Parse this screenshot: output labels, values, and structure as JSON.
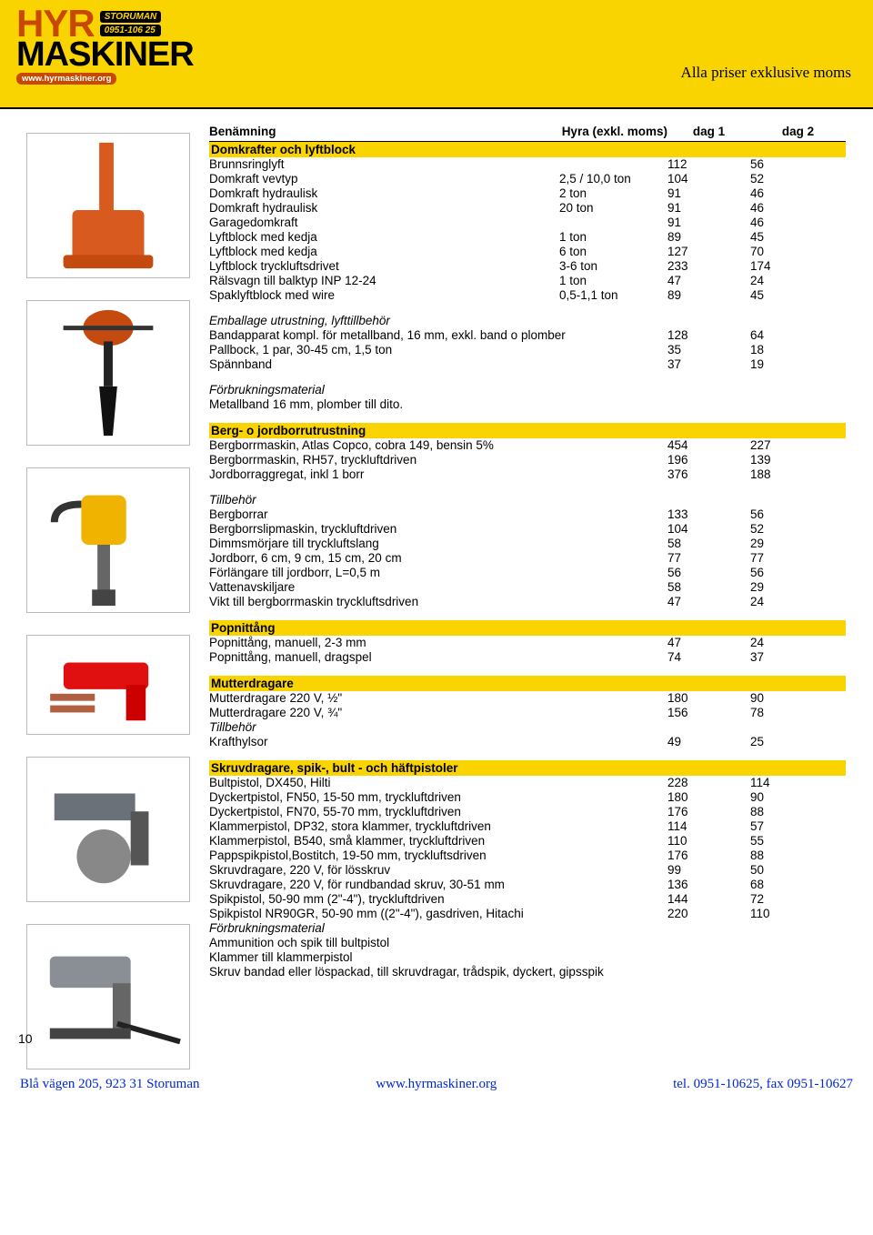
{
  "header": {
    "logo_hyr": "HYR",
    "logo_tag1": "STORUMAN",
    "logo_tag2": "0951-106 25",
    "logo_maskiner": "MASKINER",
    "logo_url": "www.hyrmaskiner.org",
    "right_text": "Alla priser exklusive moms",
    "colors": {
      "banner": "#fad400",
      "accent": "#c84800",
      "footer_text": "#0227d5"
    }
  },
  "page_number": "10",
  "footer": {
    "address": "Blå vägen 205,  923 31 Storuman",
    "url": "www.hyrmaskiner.org",
    "contact": "tel. 0951-10625, fax 0951-10627"
  },
  "table": {
    "headers": {
      "name": "Benämning",
      "spec": "Hyra (exkl. moms)",
      "d1": "dag 1",
      "d2": "dag 2"
    },
    "body": [
      {
        "t": "section",
        "name": "Domkrafter och lyftblock"
      },
      {
        "t": "row",
        "name": "Brunnsringlyft",
        "spec": "",
        "d1": "112",
        "d2": "56"
      },
      {
        "t": "row",
        "name": "Domkraft vevtyp",
        "spec": "2,5 / 10,0 ton",
        "d1": "104",
        "d2": "52"
      },
      {
        "t": "row",
        "name": "Domkraft hydraulisk",
        "spec": "2 ton",
        "d1": "91",
        "d2": "46"
      },
      {
        "t": "row",
        "name": "Domkraft hydraulisk",
        "spec": "20 ton",
        "d1": "91",
        "d2": "46"
      },
      {
        "t": "row",
        "name": "Garagedomkraft",
        "spec": "",
        "d1": "91",
        "d2": "46"
      },
      {
        "t": "row",
        "name": "Lyftblock med kedja",
        "spec": "1 ton",
        "d1": "89",
        "d2": "45"
      },
      {
        "t": "row",
        "name": "Lyftblock med kedja",
        "spec": "6 ton",
        "d1": "127",
        "d2": "70"
      },
      {
        "t": "row",
        "name": "Lyftblock tryckluftsdrivet",
        "spec": "3-6 ton",
        "d1": "233",
        "d2": "174"
      },
      {
        "t": "row",
        "name": "Rälsvagn till balktyp INP 12-24",
        "spec": "1 ton",
        "d1": "47",
        "d2": "24"
      },
      {
        "t": "row",
        "name": "Spaklyftblock med wire",
        "spec": "0,5-1,1 ton",
        "d1": "89",
        "d2": "45"
      },
      {
        "t": "spacer"
      },
      {
        "t": "ital",
        "name": "Emballage utrustning, lyfttillbehör"
      },
      {
        "t": "row",
        "name": "Bandapparat kompl. för metallband, 16 mm, exkl. band o plomber",
        "spec": "",
        "d1": "128",
        "d2": "64"
      },
      {
        "t": "row",
        "name": "Pallbock, 1 par, 30-45 cm, 1,5 ton",
        "spec": "",
        "d1": "35",
        "d2": "18"
      },
      {
        "t": "row",
        "name": "Spännband",
        "spec": "",
        "d1": "37",
        "d2": "19"
      },
      {
        "t": "spacer"
      },
      {
        "t": "ital",
        "name": "Förbrukningsmaterial"
      },
      {
        "t": "row",
        "name": "Metallband 16 mm, plomber till dito.",
        "spec": "",
        "d1": "",
        "d2": ""
      },
      {
        "t": "spacer"
      },
      {
        "t": "section",
        "name": "Berg- o jordborrutrustning"
      },
      {
        "t": "row",
        "name": "Bergborrmaskin, Atlas Copco, cobra 149, bensin 5%",
        "spec": "",
        "d1": "454",
        "d2": "227"
      },
      {
        "t": "row",
        "name": "Bergborrmaskin, RH57, tryckluftdriven",
        "spec": "",
        "d1": "196",
        "d2": "139"
      },
      {
        "t": "row",
        "name": "Jordborraggregat, inkl 1 borr",
        "spec": "",
        "d1": "376",
        "d2": "188"
      },
      {
        "t": "spacer"
      },
      {
        "t": "ital",
        "name": "Tillbehör"
      },
      {
        "t": "row",
        "name": "Bergborrar",
        "spec": "",
        "d1": "133",
        "d2": "56"
      },
      {
        "t": "row",
        "name": "Bergborrslipmaskin, tryckluftdriven",
        "spec": "",
        "d1": "104",
        "d2": "52"
      },
      {
        "t": "row",
        "name": "Dimmsmörjare till tryckluftslang",
        "spec": "",
        "d1": "58",
        "d2": "29"
      },
      {
        "t": "row",
        "name": "Jordborr, 6 cm, 9 cm, 15 cm, 20 cm",
        "spec": "",
        "d1": "77",
        "d2": "77"
      },
      {
        "t": "row",
        "name": "Förlängare till jordborr, L=0,5 m",
        "spec": "",
        "d1": "56",
        "d2": "56"
      },
      {
        "t": "row",
        "name": "Vattenavskiljare",
        "spec": "",
        "d1": "58",
        "d2": "29"
      },
      {
        "t": "row",
        "name": "Vikt till bergborrmaskin tryckluftsdriven",
        "spec": "",
        "d1": "47",
        "d2": "24"
      },
      {
        "t": "spacer"
      },
      {
        "t": "section",
        "name": "Popnittång"
      },
      {
        "t": "row",
        "name": "Popnittång, manuell, 2-3 mm",
        "spec": "",
        "d1": "47",
        "d2": "24"
      },
      {
        "t": "row",
        "name": "Popnittång, manuell, dragspel",
        "spec": "",
        "d1": "74",
        "d2": "37"
      },
      {
        "t": "spacer"
      },
      {
        "t": "section",
        "name": "Mutterdragare"
      },
      {
        "t": "row",
        "name": "Mutterdragare 220 V, ½\"",
        "spec": "",
        "d1": "180",
        "d2": "90"
      },
      {
        "t": "row",
        "name": "Mutterdragare 220 V, ¾\"",
        "spec": "",
        "d1": "156",
        "d2": "78"
      },
      {
        "t": "ital",
        "name": "Tillbehör"
      },
      {
        "t": "row",
        "name": "Krafthylsor",
        "spec": "",
        "d1": "49",
        "d2": "25"
      },
      {
        "t": "spacer"
      },
      {
        "t": "section",
        "name": "Skruvdragare, spik-, bult - och häftpistoler"
      },
      {
        "t": "row",
        "name": "Bultpistol, DX450, Hilti",
        "spec": "",
        "d1": "228",
        "d2": "114"
      },
      {
        "t": "row",
        "name": "Dyckertpistol, FN50, 15-50 mm, tryckluftdriven",
        "spec": "",
        "d1": "180",
        "d2": "90"
      },
      {
        "t": "row",
        "name": "Dyckertpistol, FN70, 55-70 mm, tryckluftdriven",
        "spec": "",
        "d1": "176",
        "d2": "88"
      },
      {
        "t": "row",
        "name": "Klammerpistol, DP32, stora klammer, tryckluftdriven",
        "spec": "",
        "d1": "114",
        "d2": "57"
      },
      {
        "t": "row",
        "name": "Klammerpistol, B540, små klammer, tryckluftdriven",
        "spec": "",
        "d1": "110",
        "d2": "55"
      },
      {
        "t": "row",
        "name": "Pappspikpistol,Bostitch, 19-50 mm, tryckluftsdriven",
        "spec": "",
        "d1": "176",
        "d2": "88"
      },
      {
        "t": "row",
        "name": "Skruvdragare, 220 V, för lösskruv",
        "spec": "",
        "d1": "99",
        "d2": "50"
      },
      {
        "t": "row",
        "name": "Skruvdragare, 220 V, för rundbandad skruv, 30-51 mm",
        "spec": "",
        "d1": "136",
        "d2": "68"
      },
      {
        "t": "row",
        "name": "Spikpistol, 50-90 mm (2\"-4\"), tryckluftdriven",
        "spec": "",
        "d1": "144",
        "d2": "72"
      },
      {
        "t": "row",
        "name": "Spikpistol NR90GR, 50-90 mm ((2\"-4\"), gasdriven, Hitachi",
        "spec": "",
        "d1": "220",
        "d2": "110"
      },
      {
        "t": "ital-note",
        "name": "Förbrukningsmaterial"
      },
      {
        "t": "row",
        "name": "Ammunition och spik till bultpistol",
        "spec": "",
        "d1": "",
        "d2": ""
      },
      {
        "t": "row",
        "name": "Klammer till klammerpistol",
        "spec": "",
        "d1": "",
        "d2": ""
      },
      {
        "t": "row",
        "name": "Skruv bandad eller löspackad, till skruvdragar, trådspik, dyckert, gipsspik",
        "spec": "",
        "d1": "",
        "d2": ""
      }
    ]
  },
  "sidebar_images": [
    {
      "label": "jack-tool",
      "color": "#d85a1e"
    },
    {
      "label": "earth-auger",
      "color": "#222"
    },
    {
      "label": "rock-drill",
      "color": "#f0b400"
    },
    {
      "label": "nail-gun-red",
      "color": "#e01010"
    },
    {
      "label": "coil-nailer",
      "color": "#6a7178"
    },
    {
      "label": "strip-nailer",
      "color": "#8a8f96"
    }
  ]
}
